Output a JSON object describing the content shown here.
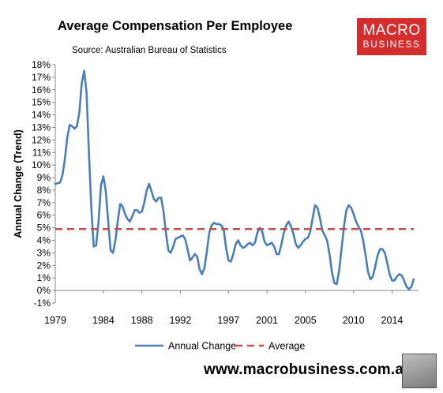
{
  "header": {
    "title": "Average Compensation Per Employee",
    "source": "Source: Australian Bureau of Statistics"
  },
  "logo": {
    "line1": "MACRO",
    "line2": "BUSINESS",
    "color": "#d42d2d"
  },
  "footer": {
    "website": "www.macrobusiness.com.au"
  },
  "chart_data": {
    "type": "line",
    "title": "Average Compensation Per Employee",
    "subtitle": "Source: Australian Bureau of Statistics",
    "ylabel": "Annual Change (Trend)",
    "xlabel": "",
    "xlim": [
      1979.0,
      2016.75
    ],
    "ylim": [
      -1,
      18
    ],
    "y_ticks": [
      -1,
      0,
      1,
      2,
      3,
      4,
      5,
      6,
      7,
      8,
      9,
      10,
      11,
      12,
      13,
      14,
      15,
      16,
      17,
      18
    ],
    "y_tick_suffix": "%",
    "x_ticks": [
      1979,
      1984,
      1988,
      1992,
      1997,
      2001,
      2005,
      2010,
      2014
    ],
    "grid": false,
    "legend_position": "bottom",
    "series": [
      {
        "name": "Annual Change",
        "color": "#4a7ebb",
        "style": "solid",
        "points": [
          [
            1979.0,
            8.5
          ],
          [
            1979.5,
            8.6
          ],
          [
            1979.75,
            9.2
          ],
          [
            1980.0,
            10.5
          ],
          [
            1980.25,
            12.2
          ],
          [
            1980.5,
            13.2
          ],
          [
            1980.75,
            13.1
          ],
          [
            1981.0,
            12.9
          ],
          [
            1981.25,
            13.1
          ],
          [
            1981.5,
            14.2
          ],
          [
            1981.75,
            16.5
          ],
          [
            1982.0,
            17.5
          ],
          [
            1982.25,
            15.8
          ],
          [
            1982.5,
            11.0
          ],
          [
            1982.75,
            6.5
          ],
          [
            1983.0,
            3.5
          ],
          [
            1983.25,
            3.6
          ],
          [
            1983.5,
            5.5
          ],
          [
            1983.75,
            8.4
          ],
          [
            1984.0,
            9.1
          ],
          [
            1984.25,
            7.9
          ],
          [
            1984.5,
            5.5
          ],
          [
            1984.75,
            3.2
          ],
          [
            1985.0,
            3.0
          ],
          [
            1985.25,
            4.0
          ],
          [
            1985.5,
            5.6
          ],
          [
            1985.75,
            6.9
          ],
          [
            1986.0,
            6.7
          ],
          [
            1986.25,
            6.1
          ],
          [
            1986.5,
            5.7
          ],
          [
            1986.75,
            5.5
          ],
          [
            1987.0,
            5.9
          ],
          [
            1987.25,
            6.4
          ],
          [
            1987.5,
            6.4
          ],
          [
            1987.75,
            6.2
          ],
          [
            1988.0,
            6.3
          ],
          [
            1988.25,
            7.0
          ],
          [
            1988.5,
            8.0
          ],
          [
            1988.75,
            8.5
          ],
          [
            1989.0,
            7.9
          ],
          [
            1989.25,
            7.3
          ],
          [
            1989.5,
            7.1
          ],
          [
            1989.75,
            7.4
          ],
          [
            1990.0,
            7.4
          ],
          [
            1990.25,
            6.3
          ],
          [
            1990.5,
            4.6
          ],
          [
            1990.75,
            3.2
          ],
          [
            1991.0,
            3.0
          ],
          [
            1991.25,
            3.5
          ],
          [
            1991.5,
            4.1
          ],
          [
            1991.75,
            4.2
          ],
          [
            1992.0,
            4.3
          ],
          [
            1992.25,
            4.4
          ],
          [
            1992.5,
            4.1
          ],
          [
            1992.75,
            3.3
          ],
          [
            1993.0,
            2.4
          ],
          [
            1993.25,
            2.6
          ],
          [
            1993.5,
            2.9
          ],
          [
            1993.75,
            2.7
          ],
          [
            1994.0,
            1.7
          ],
          [
            1994.25,
            1.3
          ],
          [
            1994.5,
            1.8
          ],
          [
            1994.75,
            3.1
          ],
          [
            1995.0,
            4.6
          ],
          [
            1995.25,
            5.2
          ],
          [
            1995.5,
            5.4
          ],
          [
            1995.75,
            5.3
          ],
          [
            1996.0,
            5.3
          ],
          [
            1996.25,
            5.2
          ],
          [
            1996.5,
            4.9
          ],
          [
            1996.75,
            3.4
          ],
          [
            1997.0,
            2.4
          ],
          [
            1997.25,
            2.3
          ],
          [
            1997.5,
            2.9
          ],
          [
            1997.75,
            3.7
          ],
          [
            1998.0,
            4.0
          ],
          [
            1998.25,
            3.6
          ],
          [
            1998.5,
            3.4
          ],
          [
            1998.75,
            3.5
          ],
          [
            1999.0,
            3.7
          ],
          [
            1999.25,
            3.8
          ],
          [
            1999.5,
            3.6
          ],
          [
            1999.75,
            3.8
          ],
          [
            2000.0,
            4.6
          ],
          [
            2000.25,
            5.0
          ],
          [
            2000.5,
            4.7
          ],
          [
            2000.75,
            3.9
          ],
          [
            2001.0,
            3.6
          ],
          [
            2001.25,
            3.7
          ],
          [
            2001.5,
            3.8
          ],
          [
            2001.75,
            3.5
          ],
          [
            2002.0,
            2.9
          ],
          [
            2002.25,
            2.9
          ],
          [
            2002.5,
            3.7
          ],
          [
            2002.75,
            4.6
          ],
          [
            2003.0,
            5.2
          ],
          [
            2003.25,
            5.5
          ],
          [
            2003.5,
            5.1
          ],
          [
            2003.75,
            4.5
          ],
          [
            2004.0,
            3.7
          ],
          [
            2004.25,
            3.4
          ],
          [
            2004.5,
            3.6
          ],
          [
            2004.75,
            3.9
          ],
          [
            2005.0,
            4.1
          ],
          [
            2005.25,
            4.2
          ],
          [
            2005.5,
            4.7
          ],
          [
            2005.75,
            5.8
          ],
          [
            2006.0,
            6.8
          ],
          [
            2006.25,
            6.6
          ],
          [
            2006.5,
            5.8
          ],
          [
            2006.75,
            4.8
          ],
          [
            2007.0,
            4.4
          ],
          [
            2007.25,
            4.0
          ],
          [
            2007.5,
            2.9
          ],
          [
            2007.75,
            1.5
          ],
          [
            2008.0,
            0.6
          ],
          [
            2008.25,
            0.5
          ],
          [
            2008.5,
            1.6
          ],
          [
            2008.75,
            3.3
          ],
          [
            2009.0,
            5.1
          ],
          [
            2009.25,
            6.4
          ],
          [
            2009.5,
            6.8
          ],
          [
            2009.75,
            6.6
          ],
          [
            2010.0,
            6.1
          ],
          [
            2010.25,
            5.5
          ],
          [
            2010.5,
            5.1
          ],
          [
            2010.75,
            4.8
          ],
          [
            2011.0,
            4.0
          ],
          [
            2011.25,
            2.8
          ],
          [
            2011.5,
            1.5
          ],
          [
            2011.75,
            0.9
          ],
          [
            2012.0,
            1.1
          ],
          [
            2012.25,
            1.9
          ],
          [
            2012.5,
            2.8
          ],
          [
            2012.75,
            3.3
          ],
          [
            2013.0,
            3.3
          ],
          [
            2013.25,
            3.0
          ],
          [
            2013.5,
            2.2
          ],
          [
            2013.75,
            1.3
          ],
          [
            2014.0,
            0.8
          ],
          [
            2014.25,
            0.8
          ],
          [
            2014.5,
            1.1
          ],
          [
            2014.75,
            1.3
          ],
          [
            2015.0,
            1.2
          ],
          [
            2015.25,
            0.8
          ],
          [
            2015.5,
            0.3
          ],
          [
            2015.75,
            0.1
          ],
          [
            2016.0,
            0.3
          ],
          [
            2016.25,
            0.9
          ]
        ]
      },
      {
        "name": "Average",
        "color": "#c0504d",
        "style": "dashed",
        "points": [
          [
            1979.0,
            4.9
          ],
          [
            2016.25,
            4.9
          ]
        ]
      }
    ]
  }
}
